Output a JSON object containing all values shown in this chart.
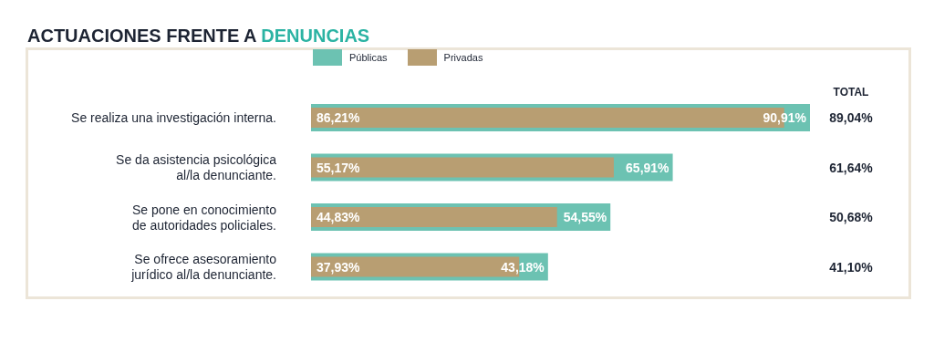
{
  "chart_data": {
    "type": "bar",
    "orientation": "horizontal",
    "title": "ACTUACIONES FRENTE A DENUNCIAS",
    "categories": [
      "Se realiza una investigación interna.",
      "Se da asistencia psicológica\nal/la denunciante.",
      "Se pone en conocimiento\nde autoridades policiales.",
      "Se ofrece asesoramiento\njurídico al/la denunciante."
    ],
    "series": [
      {
        "name": "Públicas",
        "color": "#6cc2b2",
        "values": [
          90.91,
          65.91,
          54.55,
          43.18
        ],
        "value_labels": [
          "90,91%",
          "65,91%",
          "54,55%",
          "43,18%"
        ]
      },
      {
        "name": "Privadas",
        "color": "#b89e72",
        "values": [
          86.21,
          55.17,
          44.83,
          37.93
        ],
        "value_labels": [
          "86,21%",
          "55,17%",
          "44,83%",
          "37,93%"
        ]
      }
    ],
    "annotations": [
      "TOTAL",
      "89,04%",
      "61,64%",
      "50,68%",
      "41,10%"
    ],
    "legend": "top left"
  }
}
